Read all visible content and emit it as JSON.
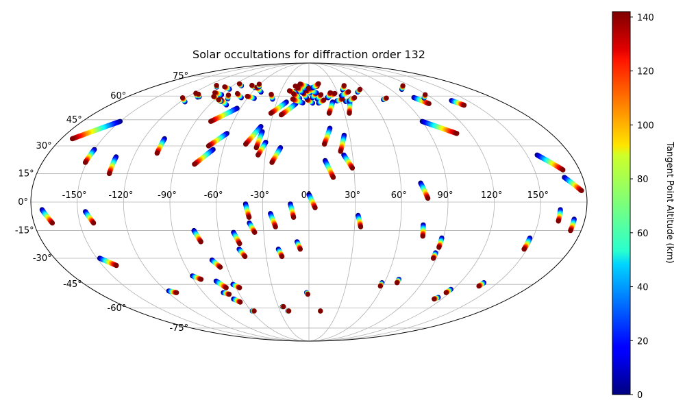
{
  "chart_data": {
    "type": "scatter",
    "projection": "mollweide",
    "title": "Solar occultations for diffraction order 132",
    "lon_tick_labels": [
      "-150°",
      "-120°",
      "-90°",
      "-60°",
      "-30°",
      "0°",
      "30°",
      "60°",
      "90°",
      "120°",
      "150°"
    ],
    "lon_ticks": [
      -150,
      -120,
      -90,
      -60,
      -30,
      0,
      30,
      60,
      90,
      120,
      150
    ],
    "lat_tick_labels": [
      "-75°",
      "-60°",
      "-45°",
      "-30°",
      "-15°",
      "0°",
      "15°",
      "30°",
      "45°",
      "60°",
      "75°"
    ],
    "lat_ticks": [
      -75,
      -60,
      -45,
      -30,
      -15,
      0,
      15,
      30,
      45,
      60,
      75
    ],
    "grid": true,
    "colorbar": {
      "label": "Tangent Point Altitude (km)",
      "cmap": "jet",
      "range": [
        0,
        142
      ],
      "tick_labels": [
        "0",
        "20",
        "40",
        "60",
        "80",
        "100",
        "120",
        "140"
      ],
      "ticks": [
        0,
        20,
        40,
        60,
        80,
        100,
        120,
        140
      ]
    },
    "occultation_tracks": [
      {
        "lon_start": -173,
        "lat_start": -4,
        "lon_end": -168,
        "lat_end": -11
      },
      {
        "lon_start": -145,
        "lat_start": -5,
        "lon_end": -141,
        "lat_end": -11
      },
      {
        "lon_start": -148,
        "lat_start": -30,
        "lon_end": -140,
        "lat_end": -34
      },
      {
        "lon_start": -118,
        "lat_start": -49,
        "lon_end": -113,
        "lat_end": -50
      },
      {
        "lon_start": -89,
        "lat_start": -40,
        "lon_end": -84,
        "lat_end": -42
      },
      {
        "lon_start": -76,
        "lat_start": -15,
        "lon_end": -73,
        "lat_end": -21
      },
      {
        "lon_start": -69,
        "lat_start": -31,
        "lon_end": -65,
        "lat_end": -35
      },
      {
        "lon_start": -73,
        "lat_start": -43,
        "lon_end": -68,
        "lat_end": -47
      },
      {
        "lon_start": -73,
        "lat_start": -50,
        "lon_end": -69,
        "lat_end": -51
      },
      {
        "lon_start": -68,
        "lat_start": -54,
        "lon_end": -64,
        "lat_end": -56
      },
      {
        "lon_start": -61,
        "lat_start": -45,
        "lon_end": -57,
        "lat_end": -47
      },
      {
        "lon_start": -59,
        "lat_start": -62,
        "lon_end": -57,
        "lat_end": -62
      },
      {
        "lon_start": -50,
        "lat_start": -16,
        "lon_end": -47,
        "lat_end": -22
      },
      {
        "lon_start": -48,
        "lat_start": -25,
        "lon_end": -45,
        "lat_end": -29
      },
      {
        "lon_start": -41,
        "lat_start": -1,
        "lon_end": -39,
        "lat_end": -8
      },
      {
        "lon_start": -39,
        "lat_start": -11,
        "lon_end": -36,
        "lat_end": -16
      },
      {
        "lon_start": -25,
        "lat_start": -6,
        "lon_end": -22,
        "lat_end": -13
      },
      {
        "lon_start": -21,
        "lat_start": -25,
        "lon_end": -19,
        "lat_end": -29
      },
      {
        "lon_start": -26,
        "lat_start": -59,
        "lon_end": -25,
        "lat_end": -59
      },
      {
        "lon_start": -22,
        "lat_start": -62,
        "lon_end": -21,
        "lat_end": -62
      },
      {
        "lon_start": -12,
        "lat_start": -1,
        "lon_end": -10,
        "lat_end": -8
      },
      {
        "lon_start": -8,
        "lat_start": -21,
        "lon_end": -6,
        "lat_end": -25
      },
      {
        "lon_start": -2,
        "lat_start": -50,
        "lon_end": -1,
        "lat_end": -51
      },
      {
        "lon_start": 0,
        "lat_start": 4,
        "lon_end": 4,
        "lat_end": -3
      },
      {
        "lon_start": 12,
        "lat_start": -62,
        "lon_end": 12,
        "lat_end": -62
      },
      {
        "lon_start": 32,
        "lat_start": -7,
        "lon_end": 34,
        "lat_end": -13
      },
      {
        "lon_start": 58,
        "lat_start": -44,
        "lon_end": 58,
        "lat_end": -46
      },
      {
        "lon_start": 70,
        "lat_start": -42,
        "lon_end": 70,
        "lat_end": -44
      },
      {
        "lon_start": 75,
        "lat_start": -12,
        "lon_end": 76,
        "lat_end": -18
      },
      {
        "lon_start": 89,
        "lat_start": -19,
        "lon_end": 89,
        "lat_end": -24
      },
      {
        "lon_start": 88,
        "lat_start": -27,
        "lon_end": 88,
        "lat_end": -30
      },
      {
        "lon_start": 115,
        "lat_start": -53,
        "lon_end": 113,
        "lat_end": -54
      },
      {
        "lon_start": 118,
        "lat_start": -48,
        "lon_end": 117,
        "lat_end": -50
      },
      {
        "lon_start": 139,
        "lat_start": -44,
        "lon_end": 138,
        "lat_end": -46
      },
      {
        "lon_start": 148,
        "lat_start": -19,
        "lon_end": 148,
        "lat_end": -25
      },
      {
        "lon_start": 163,
        "lat_start": -4,
        "lon_end": 163,
        "lat_end": -10
      },
      {
        "lon_start": 173,
        "lat_start": -9,
        "lon_end": 173,
        "lat_end": -15
      },
      {
        "lon_start": 73,
        "lat_start": 10,
        "lon_end": 77,
        "lat_end": 2
      },
      {
        "lon_start": 157,
        "lat_start": 25,
        "lon_end": 169,
        "lat_end": 17
      },
      {
        "lon_start": 168,
        "lat_start": 13,
        "lon_end": 177,
        "lat_end": 6
      },
      {
        "lon_start": 11,
        "lat_start": 22,
        "lon_end": 16,
        "lat_end": 13
      },
      {
        "lon_start": 24,
        "lat_start": 25,
        "lon_end": 29,
        "lat_end": 18
      },
      {
        "lon_start": 26,
        "lat_start": 36,
        "lon_end": 22,
        "lat_end": 27
      },
      {
        "lon_start": 16,
        "lat_start": 40,
        "lon_end": 11,
        "lat_end": 31
      },
      {
        "lon_start": -20,
        "lat_start": 29,
        "lon_end": -25,
        "lat_end": 21
      },
      {
        "lon_start": -35,
        "lat_start": 38,
        "lon_end": -37,
        "lat_end": 29
      },
      {
        "lon_start": -31,
        "lat_start": 32,
        "lon_end": -35,
        "lat_end": 25
      },
      {
        "lon_start": -37,
        "lat_start": 41,
        "lon_end": -45,
        "lat_end": 31
      },
      {
        "lon_start": -61,
        "lat_start": 37,
        "lon_end": -71,
        "lat_end": 30
      },
      {
        "lon_start": -67,
        "lat_start": 28,
        "lon_end": -77,
        "lat_end": 20
      },
      {
        "lon_start": -105,
        "lat_start": 34,
        "lon_end": -105,
        "lat_end": 26
      },
      {
        "lon_start": -132,
        "lat_start": 24,
        "lon_end": -132,
        "lat_end": 15
      },
      {
        "lon_start": -150,
        "lat_start": 28,
        "lon_end": -151,
        "lat_end": 21
      },
      {
        "lon_start": -150,
        "lat_start": 44,
        "lon_end": -172,
        "lat_end": 34
      },
      {
        "lon_start": -63,
        "lat_start": 52,
        "lon_end": -78,
        "lat_end": 44
      },
      {
        "lon_start": -12,
        "lat_start": 55,
        "lon_end": -23,
        "lat_end": 48
      },
      {
        "lon_start": -21,
        "lat_start": 56,
        "lon_end": -32,
        "lat_end": 49
      },
      {
        "lon_start": 22,
        "lat_start": 56,
        "lon_end": 17,
        "lat_end": 49
      },
      {
        "lon_start": 38,
        "lat_start": 56,
        "lon_end": 34,
        "lat_end": 49
      },
      {
        "lon_start": 90,
        "lat_start": 44,
        "lon_end": 110,
        "lat_end": 37
      },
      {
        "lon_start": 103,
        "lat_start": 59,
        "lon_end": 110,
        "lat_end": 55
      },
      {
        "lon_start": 135,
        "lat_start": 57,
        "lon_end": 140,
        "lat_end": 54
      }
    ],
    "polar_band": {
      "lat_min": 57,
      "lat_max": 69,
      "lon_min": -130,
      "lon_max": 130
    }
  }
}
